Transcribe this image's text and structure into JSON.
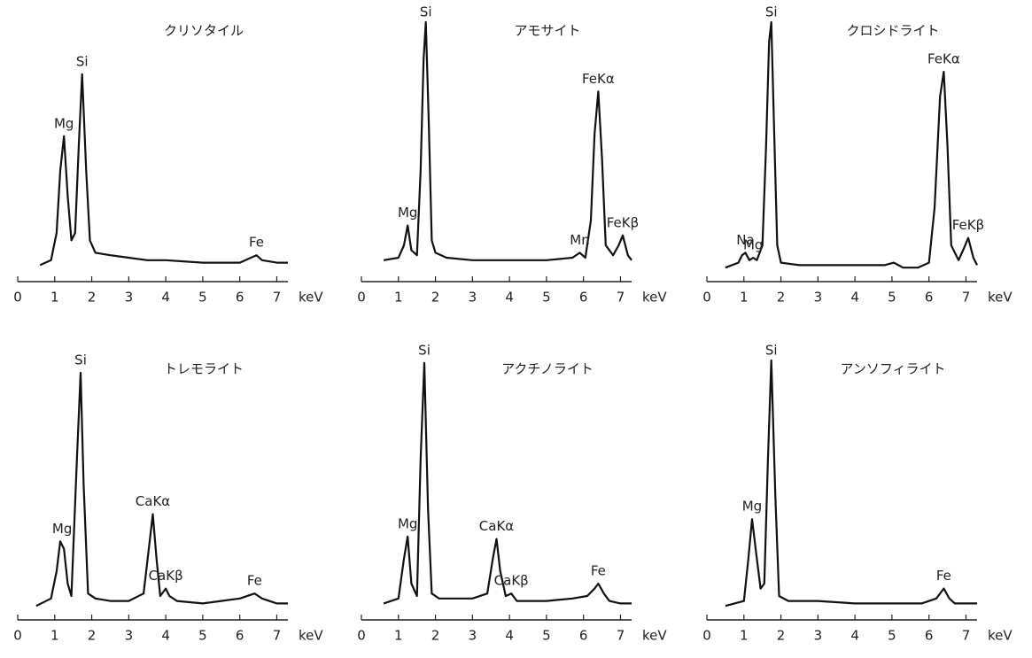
{
  "chart_data": [
    {
      "type": "line",
      "title": "クリソタイル",
      "xlabel": "keV",
      "color": "#111111",
      "x": [
        0.6,
        0.9,
        1.05,
        1.15,
        1.25,
        1.35,
        1.45,
        1.55,
        1.65,
        1.74,
        1.85,
        1.95,
        2.1,
        2.5,
        3,
        3.5,
        4,
        5,
        5.5,
        6,
        6.3,
        6.45,
        6.6,
        7,
        7.3
      ],
      "values": [
        2,
        4,
        15,
        40,
        54,
        30,
        12,
        15,
        50,
        79,
        40,
        12,
        7,
        6,
        5,
        4,
        4,
        3,
        3,
        3,
        5,
        6,
        4,
        3,
        3
      ],
      "xlim": [
        0,
        7.3
      ],
      "xticks": [
        0,
        1,
        2,
        3,
        4,
        5,
        6,
        7
      ],
      "ylim": [
        0,
        100
      ],
      "peaks": [
        {
          "label": "Mg",
          "x": 1.25
        },
        {
          "label": "Si",
          "x": 1.74
        },
        {
          "label": "Fe",
          "x": 6.45
        }
      ]
    },
    {
      "type": "line",
      "title": "アモサイト",
      "xlabel": "keV",
      "color": "#111111",
      "x": [
        0.6,
        1.0,
        1.15,
        1.25,
        1.35,
        1.5,
        1.6,
        1.68,
        1.74,
        1.82,
        1.9,
        2.0,
        2.3,
        3,
        4,
        5,
        5.7,
        5.9,
        6.05,
        6.2,
        6.3,
        6.4,
        6.5,
        6.6,
        6.8,
        6.95,
        7.06,
        7.2,
        7.3
      ],
      "values": [
        4,
        5,
        10,
        18,
        8,
        6,
        40,
        85,
        100,
        60,
        12,
        7,
        5,
        4,
        4,
        4,
        5,
        7,
        5,
        20,
        55,
        72,
        45,
        10,
        6,
        10,
        14,
        6,
        4
      ],
      "xlim": [
        0,
        7.3
      ],
      "xticks": [
        0,
        1,
        2,
        3,
        4,
        5,
        6,
        7
      ],
      "ylim": [
        0,
        100
      ],
      "peaks": [
        {
          "label": "Mg",
          "x": 1.25
        },
        {
          "label": "Si",
          "x": 1.74
        },
        {
          "label": "Mn",
          "x": 5.9
        },
        {
          "label": "FeKα",
          "x": 6.4
        },
        {
          "label": "FeKβ",
          "x": 7.06
        }
      ]
    },
    {
      "type": "line",
      "title": "クロシドライト",
      "xlabel": "keV",
      "color": "#111111",
      "x": [
        0.5,
        0.85,
        0.95,
        1.04,
        1.15,
        1.25,
        1.35,
        1.5,
        1.6,
        1.68,
        1.74,
        1.82,
        1.9,
        2.0,
        2.5,
        3,
        4,
        4.8,
        5.05,
        5.3,
        5.7,
        6.0,
        6.15,
        6.3,
        6.4,
        6.5,
        6.6,
        6.8,
        6.95,
        7.06,
        7.2,
        7.3
      ],
      "values": [
        1,
        3,
        6,
        7,
        4,
        5,
        4,
        10,
        50,
        92,
        100,
        55,
        10,
        3,
        2,
        2,
        2,
        2,
        3,
        1,
        1,
        3,
        25,
        70,
        80,
        50,
        10,
        4,
        9,
        13,
        5,
        2
      ],
      "xlim": [
        0,
        7.3
      ],
      "xticks": [
        0,
        1,
        2,
        3,
        4,
        5,
        6,
        7
      ],
      "ylim": [
        0,
        100
      ],
      "peaks": [
        {
          "label": "Na",
          "x": 1.04
        },
        {
          "label": "Mg",
          "x": 1.25
        },
        {
          "label": "Si",
          "x": 1.74
        },
        {
          "label": "FeKα",
          "x": 6.4
        },
        {
          "label": "FeKβ",
          "x": 7.06
        }
      ]
    },
    {
      "type": "line",
      "title": "トレモライト",
      "xlabel": "keV",
      "color": "#111111",
      "x": [
        0.5,
        0.9,
        1.05,
        1.15,
        1.25,
        1.35,
        1.45,
        1.6,
        1.7,
        1.78,
        1.9,
        2.1,
        2.5,
        3,
        3.4,
        3.55,
        3.65,
        3.75,
        3.85,
        4.0,
        4.1,
        4.3,
        5,
        5.5,
        6,
        6.4,
        6.6,
        7,
        7.3
      ],
      "values": [
        1,
        4,
        15,
        27,
        24,
        10,
        5,
        60,
        95,
        50,
        6,
        4,
        3,
        3,
        6,
        25,
        38,
        20,
        5,
        8,
        5,
        3,
        2,
        3,
        4,
        6,
        4,
        2,
        2
      ],
      "xlim": [
        0,
        7.3
      ],
      "xticks": [
        0,
        1,
        2,
        3,
        4,
        5,
        6,
        7
      ],
      "ylim": [
        0,
        100
      ],
      "peaks": [
        {
          "label": "Mg",
          "x": 1.2
        },
        {
          "label": "Si",
          "x": 1.7
        },
        {
          "label": "CaKα",
          "x": 3.65
        },
        {
          "label": "CaKβ",
          "x": 4.0
        },
        {
          "label": "Fe",
          "x": 6.4
        }
      ]
    },
    {
      "type": "line",
      "title": "アクチノライト",
      "xlabel": "keV",
      "color": "#111111",
      "x": [
        0.6,
        1.0,
        1.15,
        1.25,
        1.35,
        1.5,
        1.6,
        1.7,
        1.8,
        1.9,
        2.1,
        3,
        3.4,
        3.55,
        3.65,
        3.75,
        3.9,
        4.05,
        4.2,
        5,
        5.7,
        6.1,
        6.3,
        6.4,
        6.55,
        6.7,
        7,
        7.3
      ],
      "values": [
        2,
        4,
        20,
        29,
        10,
        5,
        60,
        99,
        40,
        6,
        4,
        4,
        6,
        20,
        28,
        15,
        5,
        6,
        3,
        3,
        4,
        5,
        8,
        10,
        6,
        3,
        2,
        2
      ],
      "xlim": [
        0,
        7.3
      ],
      "xticks": [
        0,
        1,
        2,
        3,
        4,
        5,
        6,
        7
      ],
      "ylim": [
        0,
        100
      ],
      "peaks": [
        {
          "label": "Mg",
          "x": 1.25
        },
        {
          "label": "Si",
          "x": 1.7
        },
        {
          "label": "CaKα",
          "x": 3.65
        },
        {
          "label": "CaKβ",
          "x": 4.05
        },
        {
          "label": "Fe",
          "x": 6.4
        }
      ]
    },
    {
      "type": "line",
      "title": "アンソフィライト",
      "xlabel": "keV",
      "color": "#111111",
      "x": [
        0.5,
        1.0,
        1.12,
        1.22,
        1.35,
        1.45,
        1.55,
        1.65,
        1.74,
        1.85,
        1.95,
        2.2,
        3,
        4,
        5,
        5.8,
        6.2,
        6.4,
        6.55,
        6.7,
        7,
        7.3
      ],
      "values": [
        1,
        3,
        20,
        36,
        20,
        8,
        10,
        60,
        100,
        45,
        5,
        3,
        3,
        2,
        2,
        2,
        4,
        8,
        4,
        2,
        2,
        2
      ],
      "xlim": [
        0,
        7.3
      ],
      "xticks": [
        0,
        1,
        2,
        3,
        4,
        5,
        6,
        7
      ],
      "ylim": [
        0,
        100
      ],
      "peaks": [
        {
          "label": "Mg",
          "x": 1.22
        },
        {
          "label": "Si",
          "x": 1.74
        },
        {
          "label": "Fe",
          "x": 6.4
        }
      ]
    }
  ]
}
